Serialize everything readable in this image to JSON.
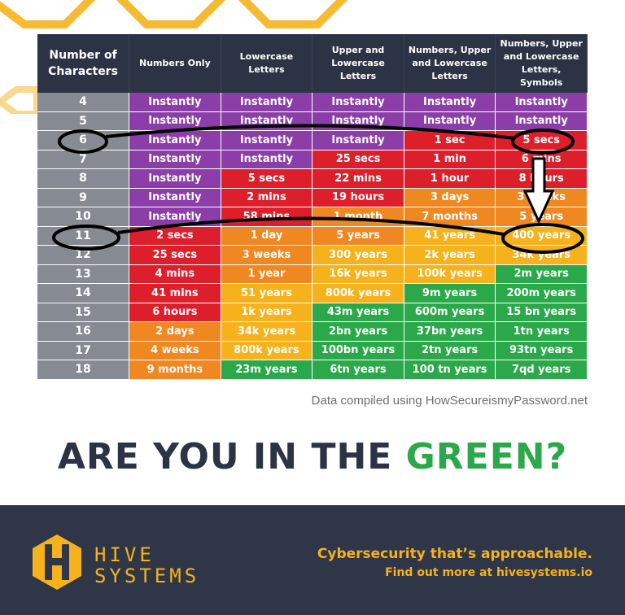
{
  "table": {
    "headers": [
      "Number of Characters",
      "Numbers Only",
      "Lowercase Letters",
      "Upper and Lowercase Letters",
      "Numbers, Upper and Lowercase Letters",
      "Numbers, Upper and Lowercase Letters, Symbols"
    ],
    "rows": [
      {
        "chars": "4",
        "cells": [
          {
            "t": "Instantly",
            "c": "purple"
          },
          {
            "t": "Instantly",
            "c": "purple"
          },
          {
            "t": "Instantly",
            "c": "purple"
          },
          {
            "t": "Instantly",
            "c": "purple"
          },
          {
            "t": "Instantly",
            "c": "purple"
          }
        ]
      },
      {
        "chars": "5",
        "cells": [
          {
            "t": "Instantly",
            "c": "purple"
          },
          {
            "t": "Instantly",
            "c": "purple"
          },
          {
            "t": "Instantly",
            "c": "purple"
          },
          {
            "t": "Instantly",
            "c": "purple"
          },
          {
            "t": "Instantly",
            "c": "purple"
          }
        ]
      },
      {
        "chars": "6",
        "cells": [
          {
            "t": "Instantly",
            "c": "purple"
          },
          {
            "t": "Instantly",
            "c": "purple"
          },
          {
            "t": "Instantly",
            "c": "purple"
          },
          {
            "t": "1 sec",
            "c": "red"
          },
          {
            "t": "5 secs",
            "c": "red"
          }
        ]
      },
      {
        "chars": "7",
        "cells": [
          {
            "t": "Instantly",
            "c": "purple"
          },
          {
            "t": "Instantly",
            "c": "purple"
          },
          {
            "t": "25 secs",
            "c": "red"
          },
          {
            "t": "1 min",
            "c": "red"
          },
          {
            "t": "6 mins",
            "c": "red"
          }
        ]
      },
      {
        "chars": "8",
        "cells": [
          {
            "t": "Instantly",
            "c": "purple"
          },
          {
            "t": "5 secs",
            "c": "red"
          },
          {
            "t": "22 mins",
            "c": "red"
          },
          {
            "t": "1 hour",
            "c": "red"
          },
          {
            "t": "8 hours",
            "c": "red"
          }
        ]
      },
      {
        "chars": "9",
        "cells": [
          {
            "t": "Instantly",
            "c": "purple"
          },
          {
            "t": "2 mins",
            "c": "red"
          },
          {
            "t": "19 hours",
            "c": "red"
          },
          {
            "t": "3 days",
            "c": "orange"
          },
          {
            "t": "3 weeks",
            "c": "orange"
          }
        ]
      },
      {
        "chars": "10",
        "cells": [
          {
            "t": "Instantly",
            "c": "purple"
          },
          {
            "t": "58 mins",
            "c": "red"
          },
          {
            "t": "1 month",
            "c": "orange"
          },
          {
            "t": "7 months",
            "c": "orange"
          },
          {
            "t": "5 years",
            "c": "orange"
          }
        ]
      },
      {
        "chars": "11",
        "cells": [
          {
            "t": "2 secs",
            "c": "red"
          },
          {
            "t": "1 day",
            "c": "orange"
          },
          {
            "t": "5 years",
            "c": "orange"
          },
          {
            "t": "41 years",
            "c": "yellow"
          },
          {
            "t": "400 years",
            "c": "yellow"
          }
        ]
      },
      {
        "chars": "12",
        "cells": [
          {
            "t": "25 secs",
            "c": "red"
          },
          {
            "t": "3 weeks",
            "c": "orange"
          },
          {
            "t": "300 years",
            "c": "yellow"
          },
          {
            "t": "2k years",
            "c": "yellow"
          },
          {
            "t": "34k years",
            "c": "yellow"
          }
        ]
      },
      {
        "chars": "13",
        "cells": [
          {
            "t": "4 mins",
            "c": "red"
          },
          {
            "t": "1 year",
            "c": "orange"
          },
          {
            "t": "16k years",
            "c": "yellow"
          },
          {
            "t": "100k years",
            "c": "yellow"
          },
          {
            "t": "2m years",
            "c": "green"
          }
        ]
      },
      {
        "chars": "14",
        "cells": [
          {
            "t": "41 mins",
            "c": "red"
          },
          {
            "t": "51 years",
            "c": "yellow"
          },
          {
            "t": "800k years",
            "c": "yellow"
          },
          {
            "t": "9m years",
            "c": "green"
          },
          {
            "t": "200m years",
            "c": "green"
          }
        ]
      },
      {
        "chars": "15",
        "cells": [
          {
            "t": "6 hours",
            "c": "red"
          },
          {
            "t": "1k years",
            "c": "yellow"
          },
          {
            "t": "43m years",
            "c": "green"
          },
          {
            "t": "600m years",
            "c": "green"
          },
          {
            "t": "15 bn years",
            "c": "green"
          }
        ]
      },
      {
        "chars": "16",
        "cells": [
          {
            "t": "2 days",
            "c": "orange"
          },
          {
            "t": "34k years",
            "c": "yellow"
          },
          {
            "t": "2bn years",
            "c": "green"
          },
          {
            "t": "37bn years",
            "c": "green"
          },
          {
            "t": "1tn years",
            "c": "green"
          }
        ]
      },
      {
        "chars": "17",
        "cells": [
          {
            "t": "4 weeks",
            "c": "orange"
          },
          {
            "t": "800k years",
            "c": "yellow"
          },
          {
            "t": "100bn years",
            "c": "green"
          },
          {
            "t": "2tn years",
            "c": "green"
          },
          {
            "t": "93tn years",
            "c": "green"
          }
        ]
      },
      {
        "chars": "18",
        "cells": [
          {
            "t": "9 months",
            "c": "orange"
          },
          {
            "t": "23m years",
            "c": "green"
          },
          {
            "t": "6tn years",
            "c": "green"
          },
          {
            "t": "100 tn years",
            "c": "green"
          },
          {
            "t": "7qd years",
            "c": "green"
          }
        ]
      }
    ]
  },
  "source_note": "Data compiled using HowSecureismyPassword.net",
  "headline": {
    "part1": "ARE YOU IN THE ",
    "part2": "GREEN?"
  },
  "footer": {
    "brand_line1": "HIVE",
    "brand_line2": "SYSTEMS",
    "tagline": "Cybersecurity that’s approachable.",
    "cta": "Find out more at hivesystems.io"
  },
  "colors": {
    "purple": "#8b3ea8",
    "red": "#dd1f2c",
    "orange": "#f08822",
    "yellow": "#f6b21c",
    "green": "#2aa84a",
    "header_bg": "#2b3344",
    "footer_bg": "#2f3648",
    "accent": "#f6b21c"
  },
  "icons": {
    "logo": "hive-h-logo-icon",
    "background": "honeycomb-pattern"
  }
}
